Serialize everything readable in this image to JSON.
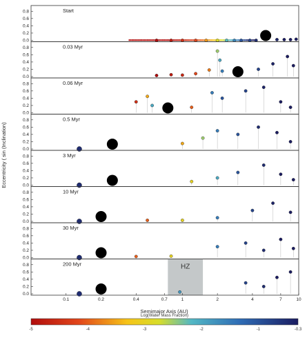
{
  "chart_data": {
    "type": "scatter",
    "xlabel": "Semimajor Axis (AU)",
    "ylabel": "Eccentricity ( sin (Inclination)",
    "x_scale": "log",
    "xlim": [
      0.05,
      10
    ],
    "ylim": [
      0,
      0.9
    ],
    "x_ticks": [
      "0.1",
      "0.2",
      "0.4",
      "0.7",
      "1",
      "2",
      "4",
      "7",
      "10"
    ],
    "y_ticks": [
      "0.0",
      "0.2",
      "0.4",
      "0.6",
      "0.8"
    ],
    "habitable_zone": {
      "label": "HZ",
      "panel": "200 Myr",
      "x_range": [
        0.75,
        1.5
      ]
    },
    "colorbar": {
      "label": "Log(Water Mass Fraction)",
      "range": [
        -5,
        -0.3
      ],
      "ticks": [
        "-5",
        "-4",
        "-3",
        "-2",
        "-1",
        "-0.3"
      ]
    },
    "panels": [
      {
        "label": "Start",
        "giants": [
          {
            "a": 5.2,
            "e": 0.05
          }
        ],
        "bodies": [
          {
            "a": 0.6,
            "e": 0.0,
            "w": -5
          },
          {
            "a": 0.8,
            "e": 0.0,
            "w": -4.8
          },
          {
            "a": 1.0,
            "e": 0.0,
            "w": -4.5
          },
          {
            "a": 1.3,
            "e": 0.0,
            "w": -4.2
          },
          {
            "a": 1.6,
            "e": 0.0,
            "w": -3.6
          },
          {
            "a": 2.0,
            "e": 0.0,
            "w": -2.8
          },
          {
            "a": 2.4,
            "e": 0.0,
            "w": -2.2
          },
          {
            "a": 2.8,
            "e": 0.0,
            "w": -1.6
          },
          {
            "a": 3.2,
            "e": 0.0,
            "w": -1.0
          },
          {
            "a": 3.8,
            "e": 0.0,
            "w": -0.8
          },
          {
            "a": 4.3,
            "e": 0.0,
            "w": -0.5
          },
          {
            "a": 6.5,
            "e": 0.02,
            "w": -0.4
          },
          {
            "a": 7.5,
            "e": 0.02,
            "w": -0.3
          },
          {
            "a": 8.5,
            "e": 0.02,
            "w": -0.3
          },
          {
            "a": 9.5,
            "e": 0.03,
            "w": -0.3
          }
        ]
      },
      {
        "label": "0.03 Myr",
        "giants": [
          {
            "a": 3.0,
            "e": 0.05
          }
        ],
        "bodies": [
          {
            "a": 0.6,
            "e": 0.03,
            "w": -5
          },
          {
            "a": 0.8,
            "e": 0.05,
            "w": -4.8
          },
          {
            "a": 1.0,
            "e": 0.04,
            "w": -4.6
          },
          {
            "a": 1.3,
            "e": 0.08,
            "w": -4.2
          },
          {
            "a": 1.7,
            "e": 0.18,
            "w": -3.8
          },
          {
            "a": 2.0,
            "e": 0.7,
            "w": -2.5
          },
          {
            "a": 2.1,
            "e": 0.45,
            "w": -2.0
          },
          {
            "a": 2.2,
            "e": 0.15,
            "w": -1.5
          },
          {
            "a": 4.5,
            "e": 0.2,
            "w": -0.8
          },
          {
            "a": 6.0,
            "e": 0.35,
            "w": -0.4
          },
          {
            "a": 8.0,
            "e": 0.55,
            "w": -0.3
          },
          {
            "a": 9.0,
            "e": 0.3,
            "w": -0.3
          }
        ]
      },
      {
        "label": "0.06 Myr",
        "giants": [
          {
            "a": 0.75,
            "e": 0.05
          }
        ],
        "bodies": [
          {
            "a": 0.4,
            "e": 0.3,
            "w": -4.5
          },
          {
            "a": 0.5,
            "e": 0.45,
            "w": -3.5
          },
          {
            "a": 0.55,
            "e": 0.2,
            "w": -2.0
          },
          {
            "a": 1.2,
            "e": 0.15,
            "w": -4.0
          },
          {
            "a": 1.8,
            "e": 0.55,
            "w": -1.5
          },
          {
            "a": 2.2,
            "e": 0.4,
            "w": -1.0
          },
          {
            "a": 3.5,
            "e": 0.6,
            "w": -0.8
          },
          {
            "a": 5.0,
            "e": 0.7,
            "w": -0.4
          },
          {
            "a": 7.0,
            "e": 0.3,
            "w": -0.3
          },
          {
            "a": 8.5,
            "e": 0.15,
            "w": -0.3
          }
        ]
      },
      {
        "label": "0.5 Myr",
        "giants": [
          {
            "a": 0.25,
            "e": 0.05
          }
        ],
        "bodies": [
          {
            "a": 0.13,
            "e": 0.0,
            "w": -0.5
          },
          {
            "a": 1.0,
            "e": 0.15,
            "w": -3.5
          },
          {
            "a": 1.5,
            "e": 0.3,
            "w": -2.5
          },
          {
            "a": 2.0,
            "e": 0.5,
            "w": -1.5
          },
          {
            "a": 3.0,
            "e": 0.4,
            "w": -1.0
          },
          {
            "a": 4.5,
            "e": 0.6,
            "w": -0.5
          },
          {
            "a": 6.5,
            "e": 0.45,
            "w": -0.3
          },
          {
            "a": 8.5,
            "e": 0.2,
            "w": -0.3
          }
        ]
      },
      {
        "label": "3 Myr",
        "giants": [
          {
            "a": 0.25,
            "e": 0.05
          }
        ],
        "bodies": [
          {
            "a": 0.13,
            "e": 0.0,
            "w": -0.5
          },
          {
            "a": 1.2,
            "e": 0.1,
            "w": -3.0
          },
          {
            "a": 2.0,
            "e": 0.2,
            "w": -2.0
          },
          {
            "a": 3.0,
            "e": 0.35,
            "w": -1.0
          },
          {
            "a": 5.0,
            "e": 0.55,
            "w": -0.5
          },
          {
            "a": 7.0,
            "e": 0.3,
            "w": -0.3
          },
          {
            "a": 9.0,
            "e": 0.15,
            "w": -0.3
          }
        ]
      },
      {
        "label": "10 Myr",
        "giants": [
          {
            "a": 0.2,
            "e": 0.05
          }
        ],
        "bodies": [
          {
            "a": 0.13,
            "e": 0.0,
            "w": -0.5
          },
          {
            "a": 0.5,
            "e": 0.03,
            "w": -4.0
          },
          {
            "a": 1.0,
            "e": 0.03,
            "w": -3.0
          },
          {
            "a": 2.0,
            "e": 0.1,
            "w": -1.5
          },
          {
            "a": 4.0,
            "e": 0.3,
            "w": -0.8
          },
          {
            "a": 6.0,
            "e": 0.5,
            "w": -0.4
          },
          {
            "a": 8.5,
            "e": 0.25,
            "w": -0.3
          }
        ]
      },
      {
        "label": "30 Myr",
        "giants": [
          {
            "a": 0.2,
            "e": 0.05
          }
        ],
        "bodies": [
          {
            "a": 0.13,
            "e": 0.0,
            "w": -0.5
          },
          {
            "a": 0.4,
            "e": 0.03,
            "w": -4.0
          },
          {
            "a": 0.8,
            "e": 0.04,
            "w": -3.0
          },
          {
            "a": 2.0,
            "e": 0.3,
            "w": -1.5
          },
          {
            "a": 3.5,
            "e": 0.4,
            "w": -0.8
          },
          {
            "a": 5.0,
            "e": 0.2,
            "w": -0.5
          },
          {
            "a": 7.0,
            "e": 0.5,
            "w": -0.3
          },
          {
            "a": 9.0,
            "e": 0.25,
            "w": -0.3
          }
        ]
      },
      {
        "label": "200 Myr",
        "giants": [
          {
            "a": 0.2,
            "e": 0.05
          }
        ],
        "bodies": [
          {
            "a": 0.13,
            "e": 0.0,
            "w": -0.5
          },
          {
            "a": 0.95,
            "e": 0.05,
            "w": -1.8
          },
          {
            "a": 3.5,
            "e": 0.3,
            "w": -0.8
          },
          {
            "a": 5.0,
            "e": 0.2,
            "w": -0.5
          },
          {
            "a": 6.5,
            "e": 0.45,
            "w": -0.3
          },
          {
            "a": 8.5,
            "e": 0.6,
            "w": -0.3
          }
        ]
      }
    ]
  }
}
